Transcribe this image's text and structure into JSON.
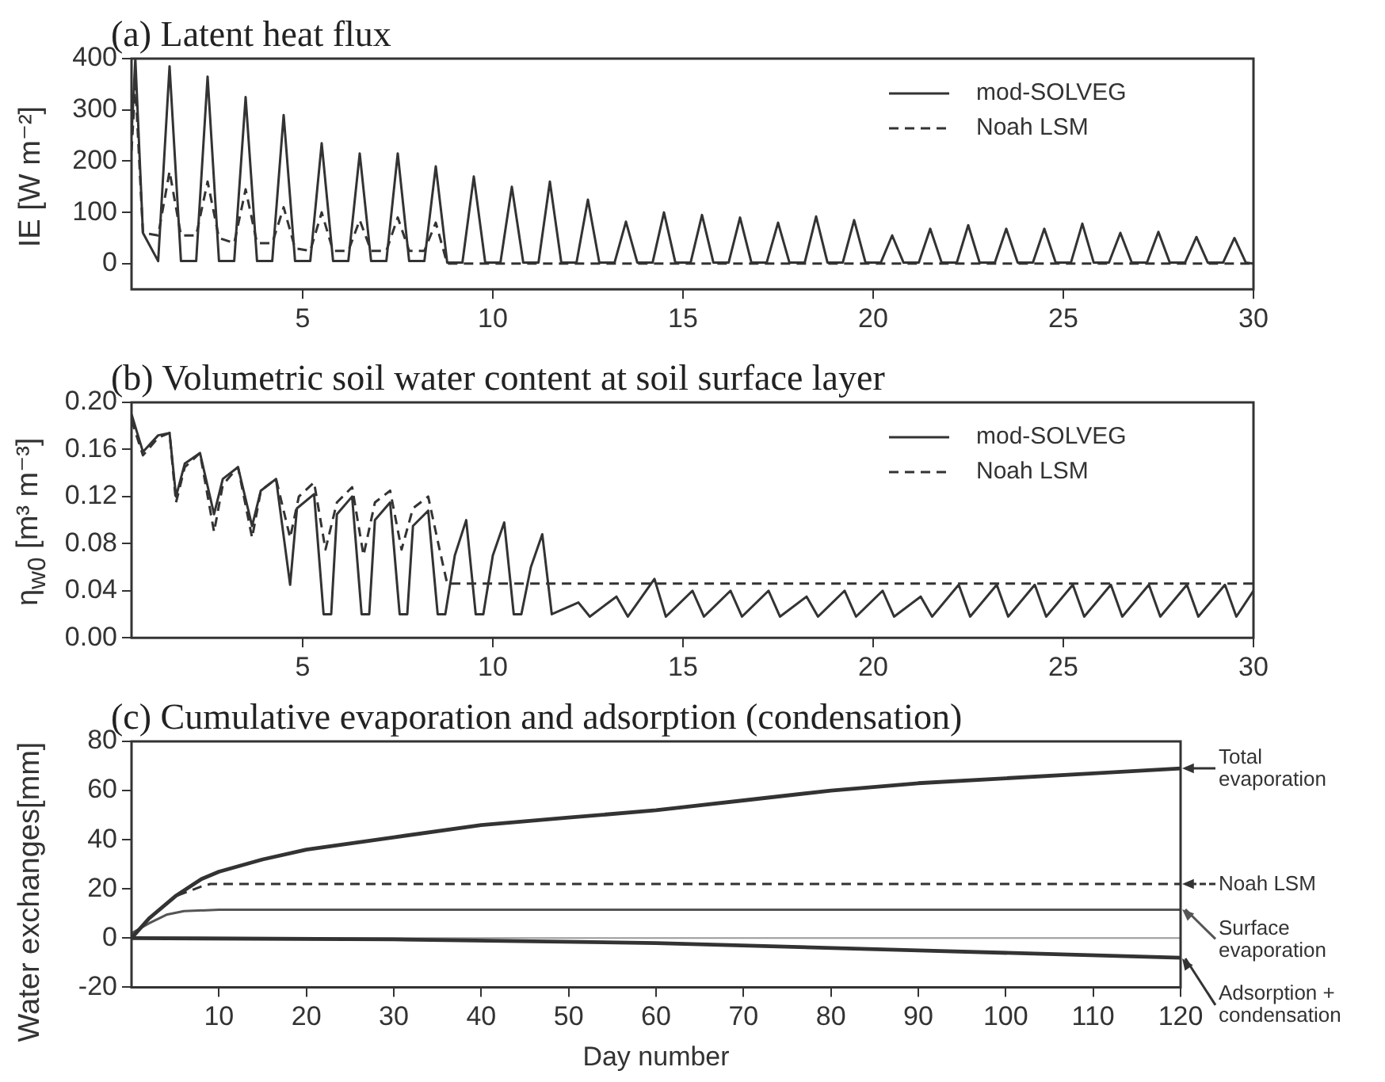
{
  "chart_data": [
    {
      "type": "line",
      "title": "(a) Latent heat flux",
      "ylabel": "IE [W m⁻²]",
      "xlim": [
        0.5,
        30
      ],
      "xticks": [
        5,
        10,
        15,
        20,
        25,
        30
      ],
      "ylim": [
        -50,
        400
      ],
      "yticks": [
        0,
        100,
        200,
        300,
        400
      ],
      "grid": false,
      "legend": "top right",
      "marker": "none",
      "series": [
        {
          "name": "mod-SOLVEG",
          "color": "#333333",
          "line_style": "solid",
          "x": [
            0.5,
            0.6,
            0.8,
            1.2,
            1.5,
            1.8,
            2.2,
            2.5,
            2.8,
            3.2,
            3.5,
            3.8,
            4.2,
            4.5,
            4.8,
            5.2,
            5.5,
            5.8,
            6.2,
            6.5,
            6.8,
            7.2,
            7.5,
            7.8,
            8.2,
            8.5,
            8.8,
            9.2,
            9.5,
            9.8,
            10.2,
            10.5,
            10.8,
            11.2,
            11.5,
            11.8,
            12.2,
            12.5,
            12.8,
            13.2,
            13.5,
            13.8,
            14.2,
            14.5,
            14.8,
            15.2,
            15.5,
            15.8,
            16.2,
            16.5,
            16.8,
            17.2,
            17.5,
            17.8,
            18.2,
            18.5,
            18.8,
            19.2,
            19.5,
            19.8,
            20.2,
            20.5,
            20.8,
            21.2,
            21.5,
            21.8,
            22.2,
            22.5,
            22.8,
            23.2,
            23.5,
            23.8,
            24.2,
            24.5,
            24.8,
            25.2,
            25.5,
            25.8,
            26.2,
            26.5,
            26.8,
            27.2,
            27.5,
            27.8,
            28.2,
            28.5,
            28.8,
            29.2,
            29.5,
            29.8,
            30
          ],
          "values": [
            250,
            400,
            60,
            5,
            385,
            5,
            5,
            365,
            5,
            5,
            325,
            5,
            5,
            290,
            5,
            5,
            235,
            5,
            5,
            215,
            5,
            5,
            215,
            5,
            5,
            190,
            2,
            2,
            170,
            2,
            2,
            150,
            2,
            2,
            160,
            2,
            2,
            125,
            2,
            2,
            82,
            2,
            2,
            100,
            2,
            2,
            95,
            2,
            2,
            90,
            2,
            2,
            80,
            2,
            2,
            92,
            2,
            2,
            85,
            2,
            2,
            55,
            2,
            2,
            68,
            2,
            2,
            75,
            2,
            2,
            68,
            2,
            2,
            68,
            2,
            2,
            78,
            2,
            2,
            60,
            2,
            2,
            62,
            2,
            2,
            52,
            2,
            2,
            50,
            2,
            0
          ]
        },
        {
          "name": "Noah LSM",
          "color": "#333333",
          "line_style": "dashed",
          "x": [
            0.5,
            0.6,
            0.8,
            1.2,
            1.5,
            1.8,
            2.2,
            2.5,
            2.8,
            3.2,
            3.5,
            3.8,
            4.2,
            4.5,
            4.8,
            5.2,
            5.5,
            5.8,
            6.2,
            6.5,
            6.8,
            7.2,
            7.5,
            7.8,
            8.2,
            8.5,
            8.8,
            30
          ],
          "values": [
            220,
            350,
            60,
            55,
            180,
            55,
            55,
            160,
            50,
            40,
            145,
            40,
            40,
            110,
            30,
            25,
            100,
            25,
            25,
            85,
            25,
            25,
            90,
            25,
            25,
            80,
            0,
            0
          ]
        }
      ]
    },
    {
      "type": "line",
      "title": "(b) Volumetric soil water content at soil surface layer",
      "ylabel": "η$_{w0}$ [m³ m⁻³]",
      "xlim": [
        0.5,
        30
      ],
      "xticks": [
        5,
        10,
        15,
        20,
        25,
        30
      ],
      "ylim": [
        0,
        0.2
      ],
      "yticks": [
        {
          "value": 0,
          "label": "0.00"
        },
        {
          "value": 0.04,
          "label": "0.04"
        },
        {
          "value": 0.08,
          "label": "0.08"
        },
        {
          "value": 0.12,
          "label": "0.12"
        },
        {
          "value": 0.16,
          "label": "0.16"
        },
        {
          "value": 0.2,
          "label": "0.20"
        }
      ],
      "grid": false,
      "legend": "top right",
      "marker": "none",
      "series": [
        {
          "name": "mod-SOLVEG",
          "color": "#333333",
          "line_style": "solid",
          "x": [
            0.5,
            0.8,
            1.2,
            1.5,
            1.67,
            1.9,
            2.3,
            2.67,
            2.9,
            3.3,
            3.67,
            3.9,
            4.3,
            4.67,
            4.85,
            5.3,
            5.55,
            5.75,
            5.9,
            6.3,
            6.55,
            6.75,
            6.9,
            7.3,
            7.55,
            7.75,
            7.9,
            8.3,
            8.55,
            8.75,
            9.0,
            9.3,
            9.55,
            9.75,
            10.0,
            10.3,
            10.55,
            10.75,
            11.0,
            11.3,
            11.55,
            12.25,
            12.55,
            13.25,
            13.55,
            14.25,
            14.55,
            15.25,
            15.55,
            16.25,
            16.55,
            17.25,
            17.55,
            18.25,
            18.55,
            19.25,
            19.55,
            20.25,
            20.55,
            21.25,
            21.55,
            22.25,
            22.55,
            23.25,
            23.55,
            24.25,
            24.55,
            25.25,
            25.55,
            26.25,
            26.55,
            27.25,
            27.55,
            28.25,
            28.55,
            29.25,
            29.55,
            30
          ],
          "values": [
            0.19,
            0.158,
            0.172,
            0.174,
            0.12,
            0.148,
            0.157,
            0.105,
            0.135,
            0.145,
            0.095,
            0.125,
            0.135,
            0.045,
            0.11,
            0.122,
            0.02,
            0.02,
            0.105,
            0.12,
            0.02,
            0.02,
            0.1,
            0.115,
            0.02,
            0.02,
            0.095,
            0.108,
            0.02,
            0.02,
            0.07,
            0.1,
            0.02,
            0.02,
            0.07,
            0.098,
            0.02,
            0.02,
            0.06,
            0.088,
            0.02,
            0.03,
            0.018,
            0.035,
            0.018,
            0.05,
            0.018,
            0.04,
            0.018,
            0.04,
            0.018,
            0.04,
            0.018,
            0.035,
            0.018,
            0.04,
            0.018,
            0.04,
            0.018,
            0.035,
            0.018,
            0.045,
            0.018,
            0.045,
            0.018,
            0.045,
            0.018,
            0.045,
            0.018,
            0.045,
            0.018,
            0.045,
            0.018,
            0.045,
            0.018,
            0.045,
            0.018,
            0.04
          ]
        },
        {
          "name": "Noah LSM",
          "color": "#333333",
          "line_style": "dashed",
          "x": [
            0.5,
            0.8,
            1.2,
            1.5,
            1.67,
            1.9,
            2.3,
            2.67,
            2.9,
            3.3,
            3.67,
            3.9,
            4.3,
            4.67,
            4.9,
            5.3,
            5.6,
            5.9,
            6.3,
            6.6,
            6.9,
            7.3,
            7.6,
            7.9,
            8.3,
            8.6,
            8.8,
            30
          ],
          "values": [
            0.185,
            0.155,
            0.17,
            0.174,
            0.115,
            0.145,
            0.157,
            0.09,
            0.13,
            0.145,
            0.085,
            0.125,
            0.135,
            0.085,
            0.12,
            0.132,
            0.075,
            0.115,
            0.128,
            0.07,
            0.115,
            0.125,
            0.075,
            0.11,
            0.12,
            0.075,
            0.046,
            0.046
          ]
        }
      ]
    },
    {
      "type": "line",
      "title": "(c) Cumulative evaporation and adsorption (condensation)",
      "xlabel": "Day number",
      "ylabel": "Water exchanges[mm]",
      "xlim": [
        0,
        120
      ],
      "xticks": [
        10,
        20,
        30,
        40,
        50,
        60,
        70,
        80,
        90,
        100,
        110,
        120
      ],
      "ylim": [
        -20,
        80
      ],
      "yticks": [
        -20,
        0,
        20,
        40,
        60,
        80
      ],
      "grid": false,
      "legend": "right",
      "marker": "none",
      "ref_lines": [
        {
          "axis": "y",
          "value": 0,
          "color": "#999999"
        }
      ],
      "series": [
        {
          "name": "Total evaporation",
          "color": "#333333",
          "line_style": "solid",
          "x": [
            0,
            2,
            5,
            8,
            10,
            15,
            20,
            30,
            40,
            50,
            60,
            70,
            80,
            90,
            100,
            110,
            120
          ],
          "values": [
            0,
            8,
            17,
            24,
            27,
            32,
            36,
            41,
            46,
            49,
            52,
            56,
            60,
            63,
            65,
            67,
            69
          ]
        },
        {
          "name": "Noah LSM",
          "color": "#333333",
          "line_style": "dashed",
          "x": [
            0,
            2,
            5,
            8,
            9,
            120
          ],
          "values": [
            0,
            8,
            17,
            21,
            22,
            22
          ]
        },
        {
          "name": "Surface evaporation",
          "color": "#555555",
          "line_style": "solid",
          "x": [
            0,
            2,
            4,
            6,
            10,
            120
          ],
          "values": [
            2,
            6,
            9.5,
            11,
            11.5,
            11.5
          ]
        },
        {
          "name": "Adsorption + condensation",
          "color": "#333333",
          "line_style": "solid",
          "x": [
            0,
            30,
            60,
            90,
            120
          ],
          "values": [
            0,
            -0.5,
            -2,
            -5,
            -8
          ]
        }
      ]
    }
  ]
}
